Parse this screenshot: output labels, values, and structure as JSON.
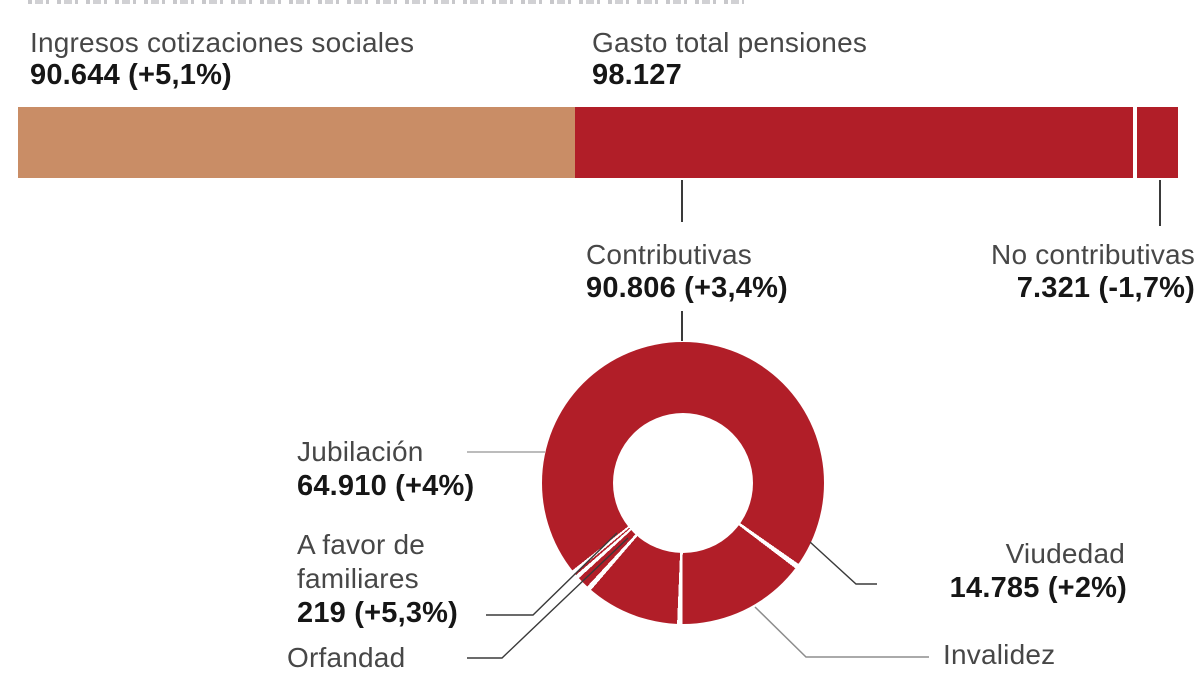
{
  "colors": {
    "bar_income_tan": "#c98d66",
    "pension_red": "#b11e28",
    "label_gray": "#474747",
    "value_black": "#161616",
    "leader_light_gray": "#a6a6a6",
    "leader_dark": "#3a3a3a"
  },
  "texts": {
    "ingresos_title": "Ingresos cotizaciones sociales",
    "ingresos_value": "90.644 (+5,1%)",
    "gasto_title": "Gasto total pensiones",
    "gasto_value": "98.127",
    "contributivas_title": "Contributivas",
    "contributivas_value": "90.806 (+3,4%)",
    "no_contributivas_title": "No contributivas",
    "no_contributivas_value": "7.321 (-1,7%)",
    "jubilacion_title": "Jubilación",
    "jubilacion_value": "64.910 (+4%)",
    "a_favor_line1": "A favor de",
    "a_favor_line2": "familiares",
    "a_favor_value": "219 (+5,3%)",
    "orfandad_title": "Orfandad",
    "viudedad_title": "Viudedad",
    "viudedad_value": "14.785 (+2%)",
    "invalidez_title": "Invalidez"
  },
  "chart_data": [
    {
      "type": "bar",
      "subtype": "proportional-horizontal-stacked",
      "title": "",
      "series": [
        {
          "name": "Ingresos cotizaciones sociales",
          "value": 90644,
          "value_label": "90.644 (+5,1%)",
          "color_key": "bar_income_tan"
        },
        {
          "name": "Gasto total pensiones",
          "value": 98127,
          "value_label": "98.127",
          "color_key": "pension_red",
          "breakdown": [
            {
              "name": "Contributivas",
              "value": 90806,
              "value_label": "90.806 (+3,4%)"
            },
            {
              "name": "No contributivas",
              "value": 7321,
              "value_label": "7.321 (-1,7%)"
            }
          ]
        }
      ],
      "legend_position": "above-bar",
      "grid": false
    },
    {
      "type": "pie",
      "subtype": "donut",
      "title": "Contributivas 90.806 (+3,4%)",
      "color_key": "pension_red",
      "segments": [
        {
          "name": "Jubilación",
          "value": 64910,
          "value_label": "64.910 (+4%)",
          "angles_deg": [
            231.7,
            485.0
          ]
        },
        {
          "name": "Viudedad",
          "value": 14785,
          "value_label": "14.785 (+2%)",
          "angles_deg": [
            127.2,
            180.2
          ]
        },
        {
          "name": "Invalidez",
          "value": null,
          "value_label": "",
          "angles_deg": [
            182.4,
            220.7
          ]
        },
        {
          "name": "Orfandad",
          "value": null,
          "value_label": "",
          "angles_deg": [
            222.8,
            227.6
          ]
        },
        {
          "name": "A favor de familiares",
          "value": 219,
          "value_label": "219 (+5,3%)",
          "angles_deg": [
            229.3,
            230.2
          ]
        }
      ],
      "legend_position": "leader-line-labels",
      "grid": false
    }
  ]
}
